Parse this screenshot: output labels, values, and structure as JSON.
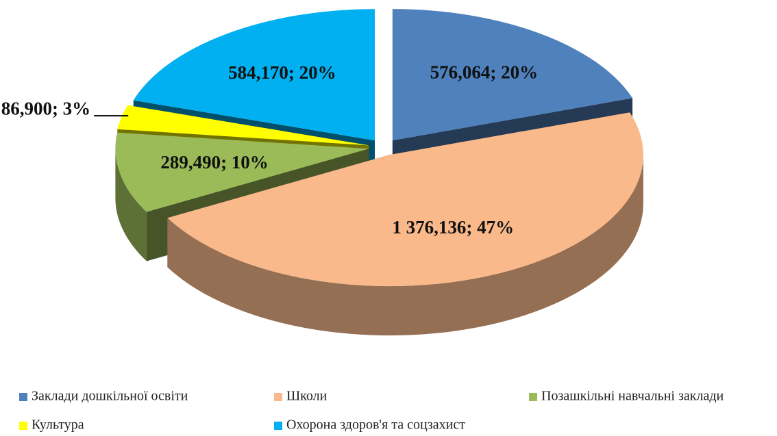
{
  "chart_data": {
    "type": "pie",
    "categories": [
      "Заклади дошкільної освіти",
      "Школи",
      "Позашкільні навчальні заклади",
      "Культура",
      "Охорона здоров'я та соцзахист"
    ],
    "values": [
      576.064,
      1376.136,
      289.49,
      86.9,
      584.17
    ],
    "value_labels": [
      "576,064; 20%",
      "1 376,136; 47%",
      "289,490; 10%",
      "86,900; 3%",
      "584,170; 20%"
    ],
    "colors": [
      "#4f81bd",
      "#f9b98a",
      "#9bbb59",
      "#ffff00",
      "#00b0f0"
    ],
    "legend": "bottom"
  }
}
